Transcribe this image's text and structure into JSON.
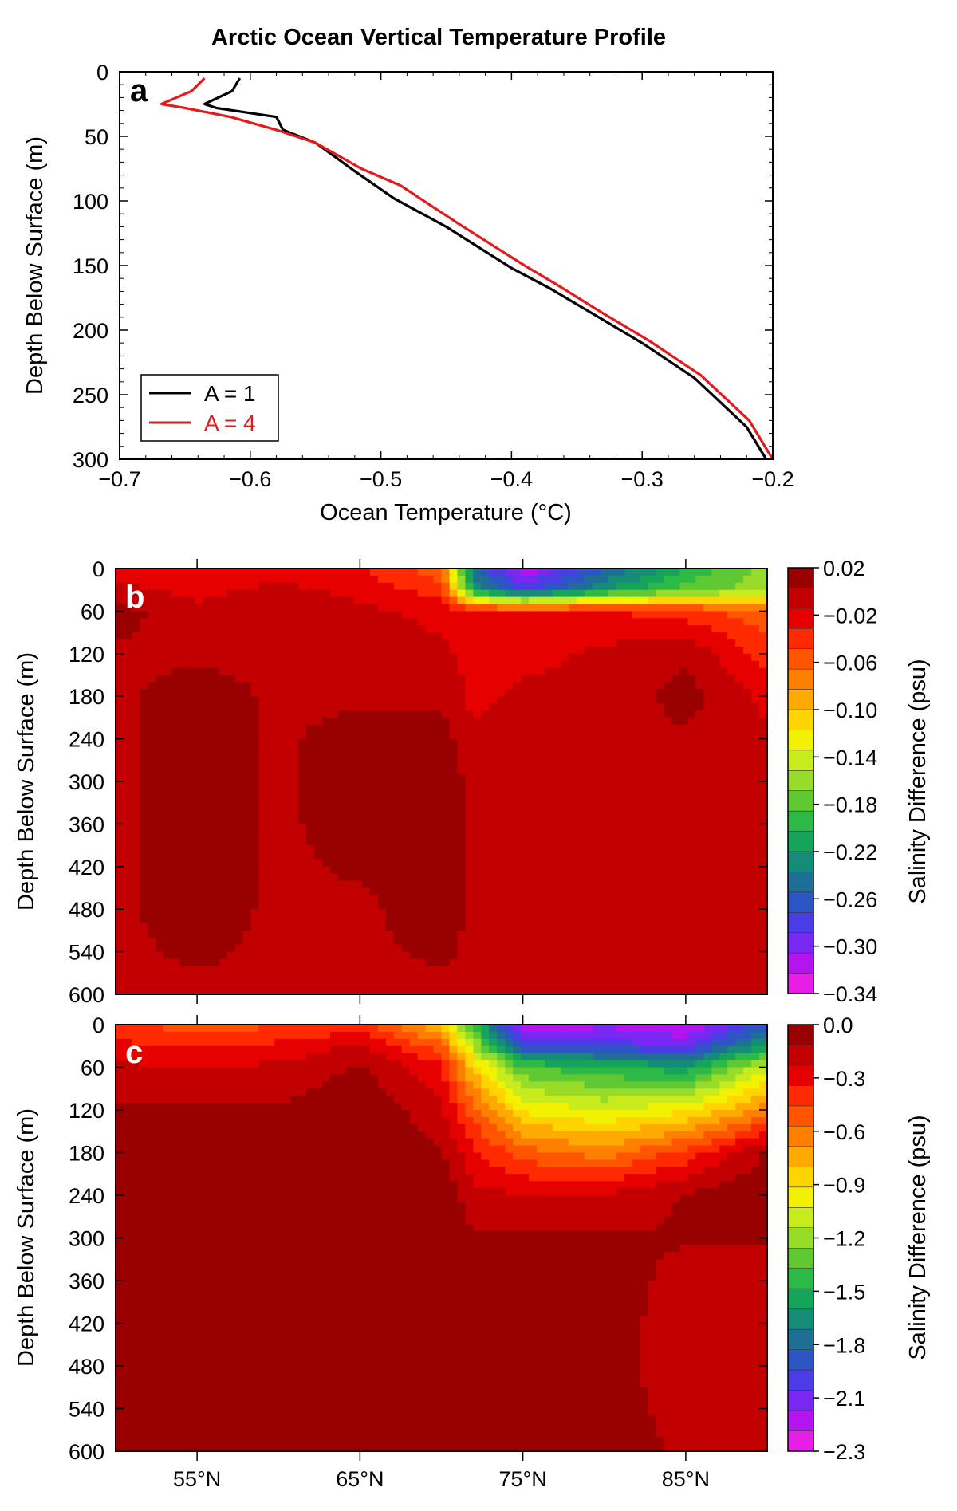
{
  "colors": {
    "series_a1": "#000000",
    "series_a4": "#e41a1c",
    "salinity_palette": [
      "#990000",
      "#c20000",
      "#e60000",
      "#ff2a00",
      "#ff5500",
      "#ff8000",
      "#ffaa00",
      "#ffd400",
      "#f2f200",
      "#c8eb1e",
      "#96dc28",
      "#5fc832",
      "#2db946",
      "#14a55a",
      "#148c78",
      "#1e6e96",
      "#2d55c3",
      "#4b3ce6",
      "#7828f0",
      "#b414f0",
      "#e61ee6"
    ]
  },
  "chart_data": [
    {
      "panel": "a",
      "type": "line",
      "title": "Arctic Ocean Vertical Temperature Profile",
      "xlabel": "Ocean Temperature (°C)",
      "ylabel": "Depth Below Surface (m)",
      "xlim": [
        -0.7,
        -0.2
      ],
      "ylim": [
        300,
        0
      ],
      "y_inverted": true,
      "xticks": [
        "−0.7",
        "−0.6",
        "−0.5",
        "−0.4",
        "−0.3",
        "−0.2"
      ],
      "yticks": [
        "0",
        "50",
        "100",
        "150",
        "200",
        "250",
        "300"
      ],
      "legend_position": "bottom-left",
      "series": [
        {
          "name": "A = 1",
          "color": "#000000",
          "points": [
            [
              -0.608,
              5
            ],
            [
              -0.614,
              15
            ],
            [
              -0.635,
              25
            ],
            [
              -0.626,
              28
            ],
            [
              -0.58,
              35
            ],
            [
              -0.575,
              45
            ],
            [
              -0.55,
              55
            ],
            [
              -0.52,
              77
            ],
            [
              -0.49,
              98
            ],
            [
              -0.45,
              120
            ],
            [
              -0.4,
              152
            ],
            [
              -0.37,
              168
            ],
            [
              -0.33,
              192
            ],
            [
              -0.3,
              210
            ],
            [
              -0.26,
              237
            ],
            [
              -0.22,
              275
            ],
            [
              -0.205,
              300
            ]
          ]
        },
        {
          "name": "A = 4",
          "color": "#e41a1c",
          "points": [
            [
              -0.635,
              5
            ],
            [
              -0.645,
              15
            ],
            [
              -0.668,
              25
            ],
            [
              -0.65,
              28
            ],
            [
              -0.615,
              35
            ],
            [
              -0.58,
              45
            ],
            [
              -0.55,
              55
            ],
            [
              -0.515,
              75
            ],
            [
              -0.485,
              88
            ],
            [
              -0.47,
              98
            ],
            [
              -0.44,
              118
            ],
            [
              -0.39,
              150
            ],
            [
              -0.365,
              165
            ],
            [
              -0.33,
              187
            ],
            [
              -0.295,
              208
            ],
            [
              -0.255,
              235
            ],
            [
              -0.218,
              270
            ],
            [
              -0.2,
              300
            ]
          ]
        }
      ]
    },
    {
      "panel": "b",
      "type": "heatmap",
      "ylabel": "Depth Below Surface (m)",
      "colorbar_label": "Salinity Difference (psu)",
      "ylim": [
        600,
        0
      ],
      "xlim": [
        50,
        90
      ],
      "x_unit": "°N",
      "yticks": [
        "0",
        "60",
        "120",
        "180",
        "240",
        "300",
        "360",
        "420",
        "480",
        "540",
        "600"
      ],
      "colorbar_ticks": [
        "0.02",
        "−0.02",
        "−0.06",
        "−0.10",
        "−0.14",
        "−0.18",
        "−0.22",
        "−0.26",
        "−0.30",
        "−0.34"
      ],
      "colorbar_range": [
        -0.34,
        0.02
      ],
      "x": [
        50,
        55,
        60,
        65,
        70,
        72,
        75,
        80,
        85,
        90
      ],
      "depths": [
        0,
        30,
        60,
        120,
        180,
        240,
        300,
        360,
        480,
        600
      ],
      "values": [
        [
          -0.02,
          -0.03,
          -0.02,
          -0.03,
          -0.06,
          -0.25,
          -0.32,
          -0.26,
          -0.2,
          -0.16
        ],
        [
          -0.01,
          -0.02,
          -0.01,
          -0.02,
          -0.04,
          -0.22,
          -0.28,
          -0.22,
          -0.18,
          -0.16
        ],
        [
          0.01,
          -0.01,
          0.0,
          -0.01,
          -0.02,
          -0.03,
          -0.03,
          -0.03,
          -0.04,
          -0.06
        ],
        [
          0.0,
          0.0,
          0.0,
          0.0,
          -0.01,
          -0.02,
          -0.02,
          -0.01,
          0.0,
          -0.04
        ],
        [
          0.0,
          0.01,
          0.0,
          0.0,
          0.0,
          -0.02,
          -0.01,
          -0.01,
          0.01,
          -0.02
        ],
        [
          0.0,
          0.01,
          0.0,
          0.01,
          0.01,
          -0.01,
          0.0,
          0.0,
          0.0,
          -0.01
        ],
        [
          0.0,
          0.01,
          0.0,
          0.01,
          0.01,
          0.0,
          0.0,
          0.0,
          0.0,
          0.0
        ],
        [
          0.0,
          0.01,
          0.0,
          0.01,
          0.01,
          0.0,
          0.0,
          0.0,
          0.0,
          0.0
        ],
        [
          0.0,
          0.01,
          0.0,
          0.0,
          0.01,
          0.0,
          0.0,
          0.0,
          0.0,
          0.0
        ],
        [
          0.0,
          0.0,
          0.0,
          0.0,
          0.0,
          0.0,
          0.0,
          0.0,
          0.0,
          0.0
        ]
      ]
    },
    {
      "panel": "c",
      "type": "heatmap",
      "ylabel": "Depth Below Surface (m)",
      "colorbar_label": "Salinity Difference (psu)",
      "ylim": [
        600,
        0
      ],
      "xlim": [
        50,
        90
      ],
      "x_unit": "°N",
      "xticks": [
        "55°N",
        "65°N",
        "75°N",
        "85°N"
      ],
      "yticks": [
        "0",
        "60",
        "120",
        "180",
        "240",
        "300",
        "360",
        "420",
        "480",
        "540",
        "600"
      ],
      "colorbar_ticks": [
        "0.0",
        "−0.3",
        "−0.6",
        "−0.9",
        "−1.2",
        "−1.5",
        "−1.8",
        "−2.1",
        "−2.3"
      ],
      "colorbar_range": [
        -2.3,
        0.0
      ],
      "x": [
        50,
        55,
        60,
        65,
        70,
        72,
        75,
        80,
        85,
        90
      ],
      "depths": [
        0,
        30,
        60,
        120,
        180,
        240,
        300,
        360,
        480,
        600
      ],
      "values": [
        [
          -0.4,
          -0.5,
          -0.45,
          -0.4,
          -0.8,
          -1.4,
          -2.2,
          -2.1,
          -2.2,
          -1.8
        ],
        [
          -0.3,
          -0.35,
          -0.3,
          -0.2,
          -0.5,
          -1.1,
          -1.9,
          -1.9,
          -2.0,
          -1.5
        ],
        [
          -0.2,
          -0.2,
          -0.2,
          -0.1,
          -0.3,
          -0.8,
          -1.3,
          -1.4,
          -1.5,
          -1.0
        ],
        [
          -0.1,
          -0.1,
          -0.1,
          0.0,
          -0.2,
          -0.5,
          -0.9,
          -1.0,
          -0.9,
          -0.6
        ],
        [
          0.0,
          0.0,
          -0.05,
          0.0,
          -0.1,
          -0.3,
          -0.5,
          -0.6,
          -0.4,
          -0.1
        ],
        [
          0.0,
          0.0,
          0.0,
          0.0,
          0.0,
          -0.2,
          -0.2,
          -0.2,
          -0.1,
          0.0
        ],
        [
          0.0,
          0.0,
          0.0,
          0.0,
          0.0,
          -0.1,
          -0.1,
          -0.1,
          -0.1,
          -0.1
        ],
        [
          0.0,
          0.0,
          0.0,
          0.0,
          0.0,
          -0.05,
          0.0,
          -0.05,
          -0.15,
          -0.15
        ],
        [
          0.0,
          0.0,
          0.0,
          0.0,
          0.0,
          0.0,
          0.0,
          -0.05,
          -0.2,
          -0.2
        ],
        [
          0.0,
          0.0,
          0.0,
          0.0,
          0.0,
          0.0,
          0.0,
          0.0,
          -0.15,
          -0.2
        ]
      ]
    }
  ],
  "text": {
    "title": "Arctic Ocean Vertical Temperature Profile",
    "panel_a_letter": "a",
    "panel_b_letter": "b",
    "panel_c_letter": "c",
    "a_xlabel": "Ocean Temperature (°C)",
    "a_ylabel": "Depth Below Surface (m)",
    "b_ylabel": "Depth Below Surface (m)",
    "c_ylabel": "Depth Below Surface (m)",
    "b_cblabel": "Salinity Difference (psu)",
    "c_cblabel": "Salinity Difference (psu)",
    "legend_a1": "A = 1",
    "legend_a4": "A = 4"
  }
}
